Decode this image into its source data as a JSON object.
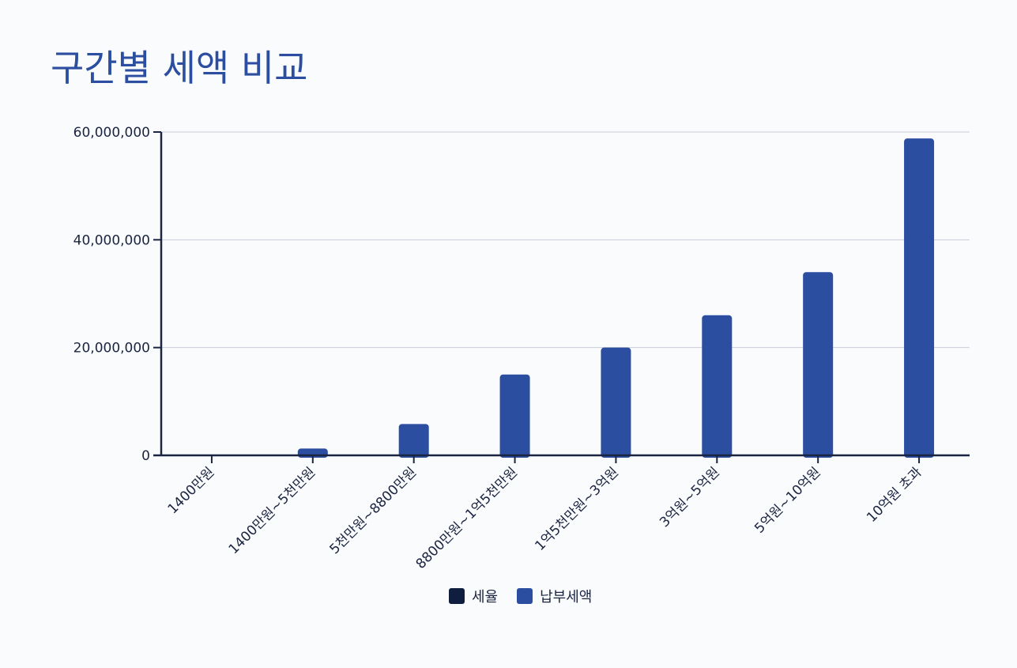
{
  "chart_data": {
    "type": "bar",
    "title": "구간별 세액 비교",
    "categories": [
      "1400만원",
      "1400만원~5천만원",
      "5천만원~8800만원",
      "8800만원~1억5천만원",
      "1억5천만원~3억원",
      "3억원~5억원",
      "5억원~10억원",
      "10억원 초과"
    ],
    "series": [
      {
        "name": "세율",
        "color": "#0f1d3f",
        "values": [
          0,
          0,
          0,
          0,
          0,
          0,
          0,
          0
        ]
      },
      {
        "name": "납부세액",
        "color": "#2b4ea0",
        "values": [
          0,
          1260000,
          5820000,
          15000000,
          20000000,
          26000000,
          34000000,
          58800000
        ]
      }
    ],
    "yticks": [
      "0",
      "20,000,000",
      "40,000,000",
      "60,000,000"
    ],
    "ylim": [
      0,
      60000000
    ],
    "grid": true,
    "legend_position": "bottom"
  }
}
